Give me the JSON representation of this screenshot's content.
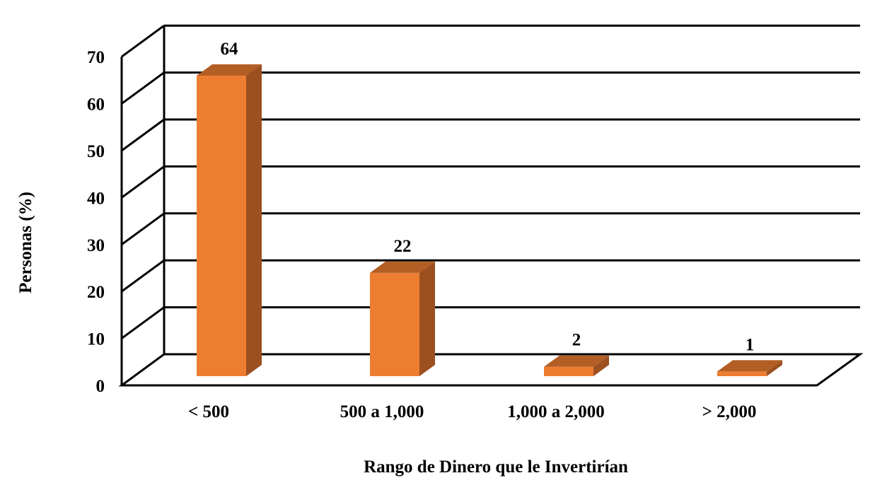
{
  "chart_data": {
    "type": "bar",
    "style": "3d-column",
    "categories": [
      "< 500",
      "500 a 1,000",
      "1,000 a 2,000",
      "> 2,000"
    ],
    "values": [
      64,
      22,
      2,
      1
    ],
    "data_labels": [
      "64",
      "22",
      "2",
      "1"
    ],
    "title": "",
    "xlabel": "Rango de Dinero que le Invertirían",
    "ylabel": "Personas (%)",
    "ylim": [
      0,
      70
    ],
    "yticks": [
      0,
      10,
      20,
      30,
      40,
      50,
      60,
      70
    ],
    "grid": true,
    "legend": "none",
    "colors": {
      "front": "#ED7D31",
      "top": "#B35E24",
      "side": "#9C5020"
    }
  }
}
